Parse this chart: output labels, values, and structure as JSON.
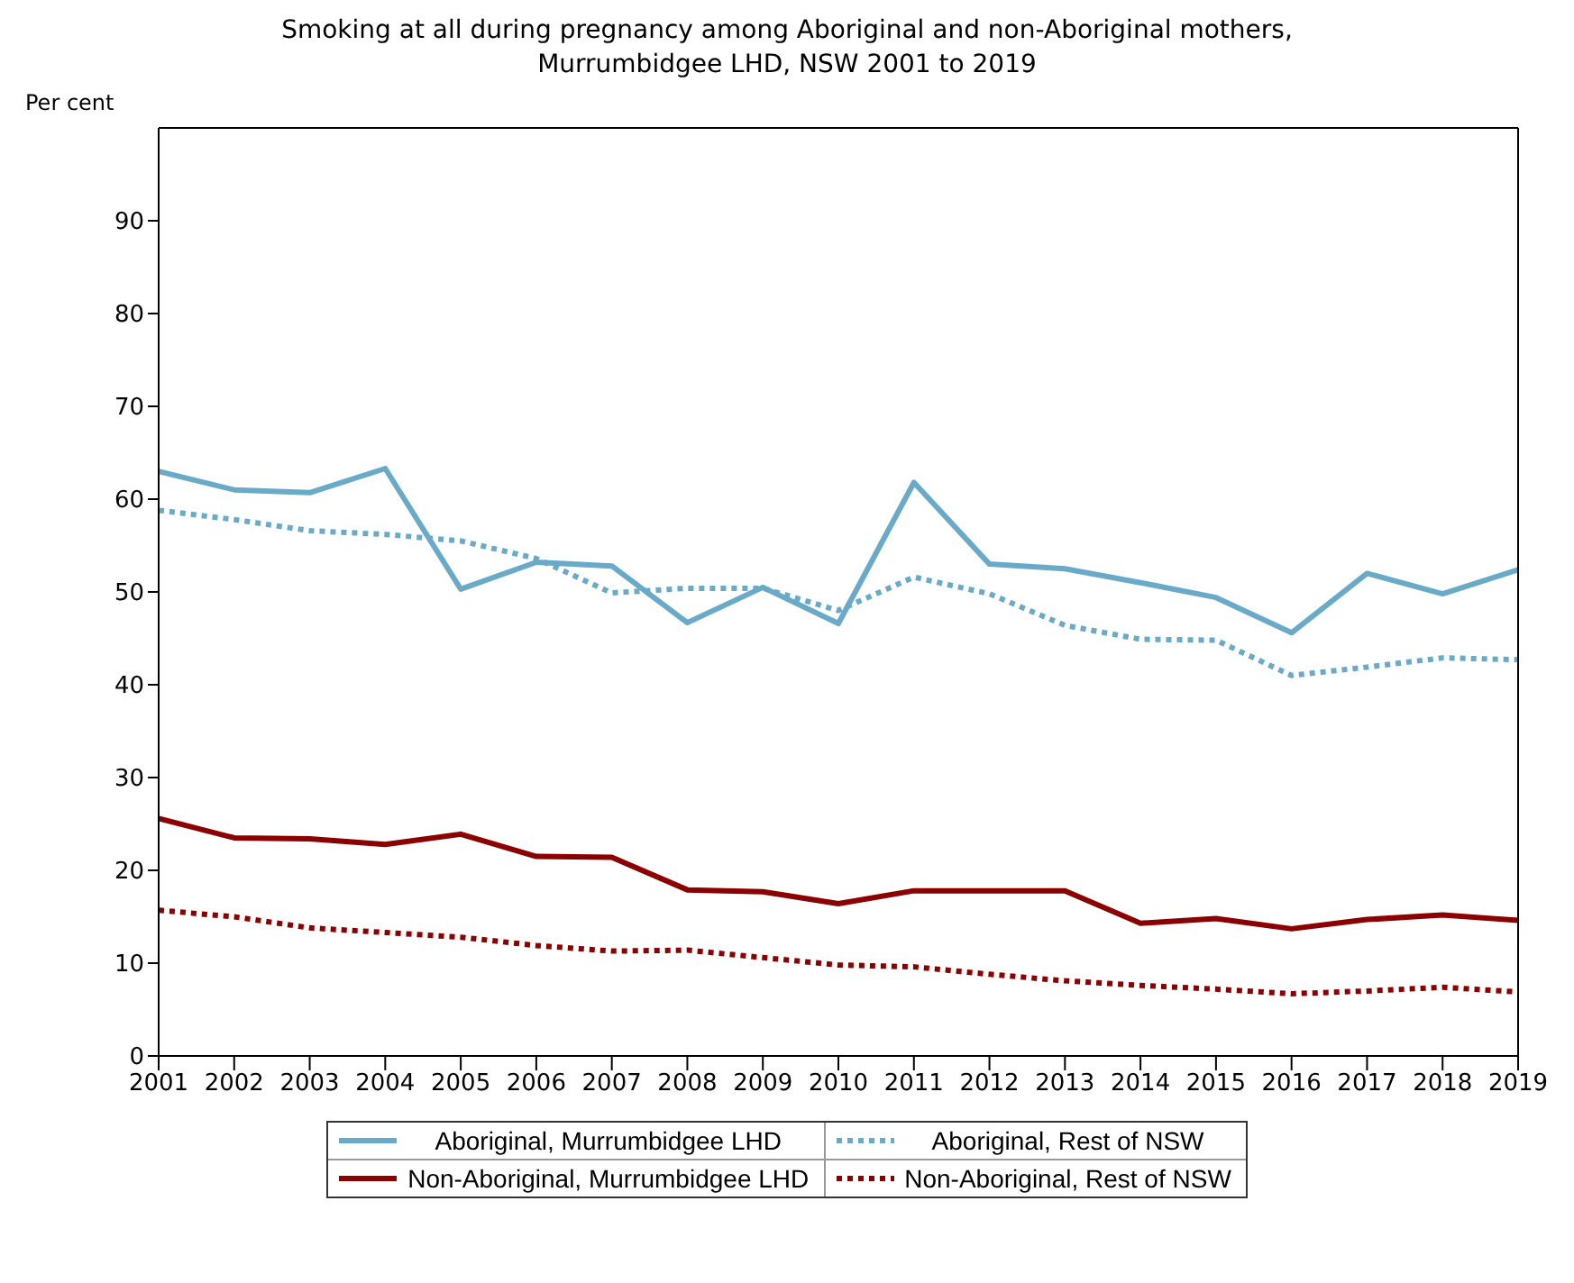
{
  "chart_data": {
    "type": "line",
    "title": "Smoking at all during pregnancy among Aboriginal and non-Aboriginal mothers,\nMurrumbidgee LHD, NSW 2001 to 2019",
    "ylabel": "Per cent",
    "x": [
      2001,
      2002,
      2003,
      2004,
      2005,
      2006,
      2007,
      2008,
      2009,
      2010,
      2011,
      2012,
      2013,
      2014,
      2015,
      2016,
      2017,
      2018,
      2019
    ],
    "xlim": [
      2001,
      2019
    ],
    "xticks": [
      2001,
      2002,
      2003,
      2004,
      2005,
      2006,
      2007,
      2008,
      2009,
      2010,
      2011,
      2012,
      2013,
      2014,
      2015,
      2016,
      2017,
      2018,
      2019
    ],
    "ylim": [
      0,
      100
    ],
    "yticks": [
      0,
      10,
      20,
      30,
      40,
      50,
      60,
      70,
      80,
      90
    ],
    "grid": false,
    "legend": "bottom",
    "marker": "none",
    "series": [
      {
        "name": "Aboriginal, Murrumbidgee LHD",
        "color": "#6aaac9",
        "line_style": "solid",
        "values": [
          63,
          61,
          60.7,
          63.3,
          50.3,
          53.2,
          52.8,
          46.7,
          50.5,
          46.6,
          61.8,
          53,
          52.5,
          51,
          49.4,
          45.6,
          52,
          49.8,
          52.4
        ]
      },
      {
        "name": "Aboriginal, Rest of NSW",
        "color": "#6aaac9",
        "line_style": "dotted",
        "values": [
          58.8,
          57.8,
          56.6,
          56.2,
          55.5,
          53.6,
          49.9,
          50.4,
          50.4,
          48,
          51.6,
          49.8,
          46.4,
          44.9,
          44.8,
          41,
          41.9,
          42.9,
          42.7
        ]
      },
      {
        "name": "Non-Aboriginal, Murrumbidgee LHD",
        "color": "#8b0000",
        "line_style": "solid",
        "values": [
          25.6,
          23.5,
          23.4,
          22.8,
          23.9,
          21.5,
          21.4,
          17.9,
          17.7,
          16.4,
          17.8,
          17.8,
          17.8,
          14.3,
          14.8,
          13.7,
          14.7,
          15.2,
          14.6
        ]
      },
      {
        "name": "Non-Aboriginal, Rest of NSW",
        "color": "#8b0000",
        "line_style": "dotted",
        "values": [
          15.7,
          15,
          13.8,
          13.3,
          12.8,
          11.9,
          11.3,
          11.4,
          10.6,
          9.8,
          9.6,
          8.8,
          8.1,
          7.6,
          7.2,
          6.7,
          7,
          7.4,
          6.9
        ]
      }
    ]
  }
}
